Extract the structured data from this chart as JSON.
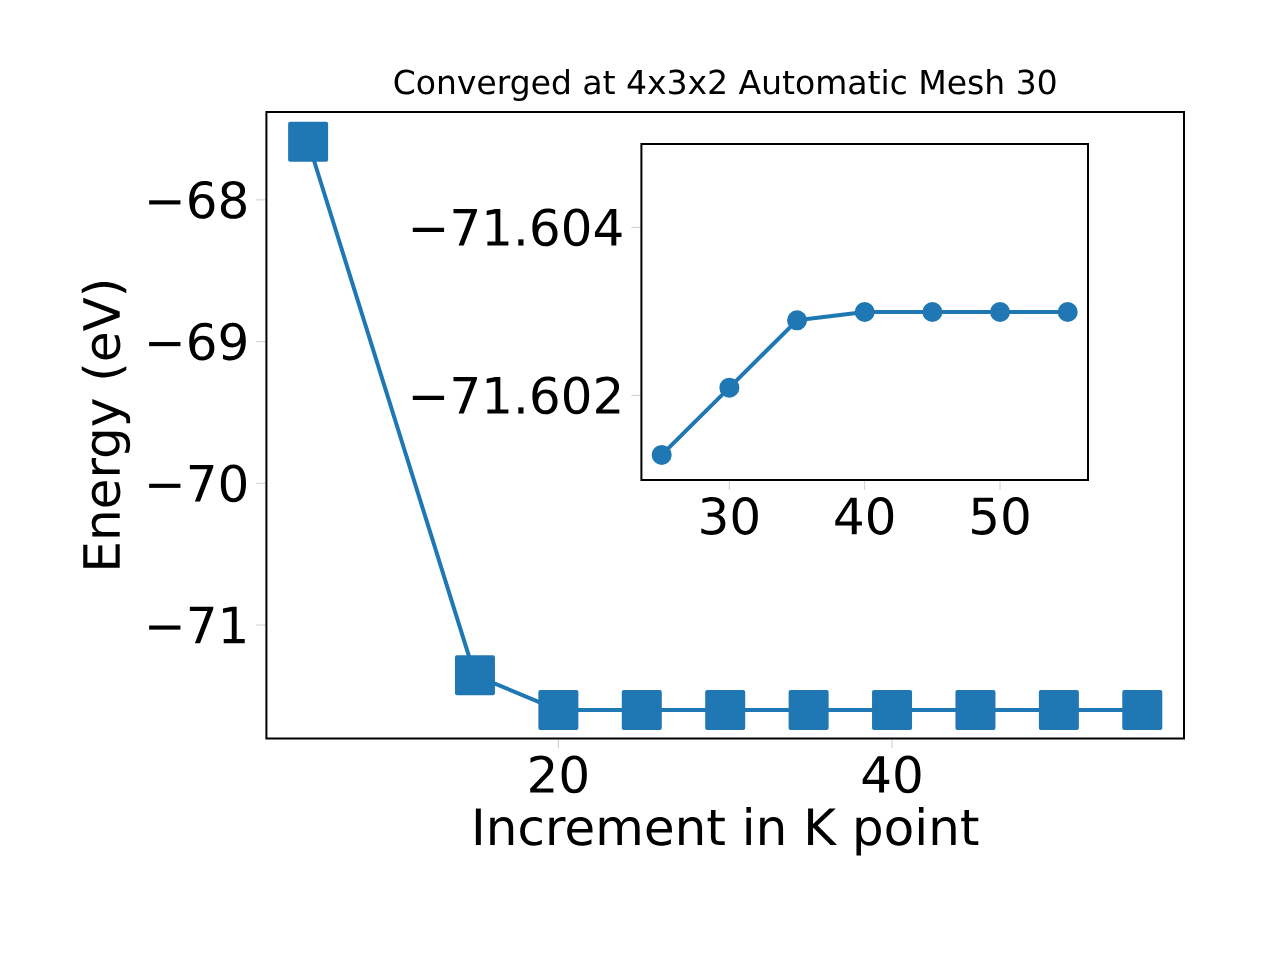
{
  "chart_data": [
    {
      "type": "line",
      "title": "Converged at 4x3x2 Automatic Mesh 30",
      "xlabel": "Increment in K point",
      "ylabel": "Energy (eV)",
      "x": [
        5,
        15,
        20,
        25,
        30,
        35,
        40,
        45,
        50,
        55
      ],
      "values": [
        -67.59,
        -71.355,
        -71.6,
        -71.6,
        -71.6,
        -71.6,
        -71.6,
        -71.6,
        -71.6,
        -71.6
      ],
      "color": "#1f77b4",
      "marker": "square",
      "line_style": "solid",
      "xlim": [
        2.5,
        57.5
      ],
      "ylim": [
        -71.8,
        -67.38
      ],
      "xticks": [
        20,
        40
      ],
      "yticks": [
        {
          "value": -71,
          "label": "−71"
        },
        {
          "value": -70,
          "label": "−70"
        },
        {
          "value": -69,
          "label": "−69"
        },
        {
          "value": -68,
          "label": "−68"
        }
      ]
    },
    {
      "type": "line",
      "x": [
        25,
        30,
        35,
        40,
        45,
        50,
        55
      ],
      "values": [
        -71.6013,
        -71.6021,
        -71.6029,
        -71.603,
        -71.603,
        -71.603,
        -71.603
      ],
      "color": "#1f77b4",
      "marker": "circle",
      "line_style": "solid",
      "xlim": [
        23.5,
        56.5
      ],
      "ylim": [
        -71.601,
        -71.605
      ],
      "xticks": [
        30,
        40,
        50
      ],
      "yticks": [
        {
          "value": -71.604,
          "label": "−71.604"
        },
        {
          "value": -71.602,
          "label": "−71.602"
        }
      ]
    }
  ]
}
